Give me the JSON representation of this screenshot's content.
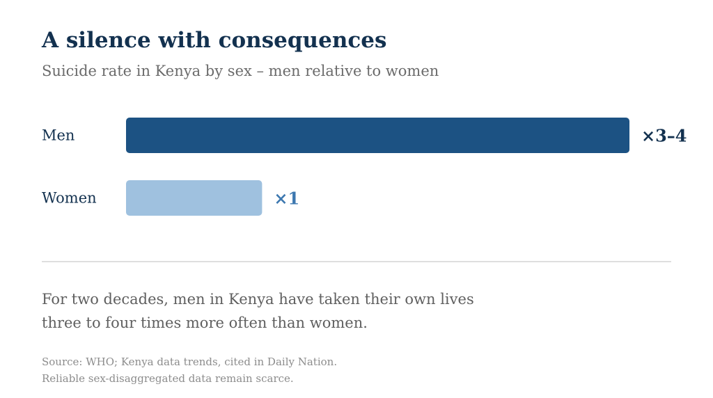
{
  "title": "A silence with consequences",
  "subtitle": "Suicide rate in Kenya by sex – men relative to women",
  "chart_data": {
    "type": "bar",
    "orientation": "horizontal",
    "title": "A silence with consequences",
    "subtitle": "Suicide rate in Kenya by sex – men relative to women",
    "xlabel": "",
    "ylabel": "",
    "grid": false,
    "categories": [
      "Men",
      "Women"
    ],
    "values": [
      3.7,
      1
    ],
    "value_labels": [
      "×3–4",
      "×1"
    ],
    "xlim": [
      0,
      3.7
    ],
    "colors": [
      "#1c5283",
      "#9fc1df"
    ],
    "label_colors": [
      "#13314f",
      "#3d78b0"
    ]
  },
  "body": {
    "line1": "For two decades, men in Kenya have taken their own lives",
    "line2": "three to four times more often than women."
  },
  "source": {
    "line1": "Source: WHO; Kenya data trends, cited in Daily Nation.",
    "line2": "Reliable sex-disaggregated data remain scarce."
  }
}
